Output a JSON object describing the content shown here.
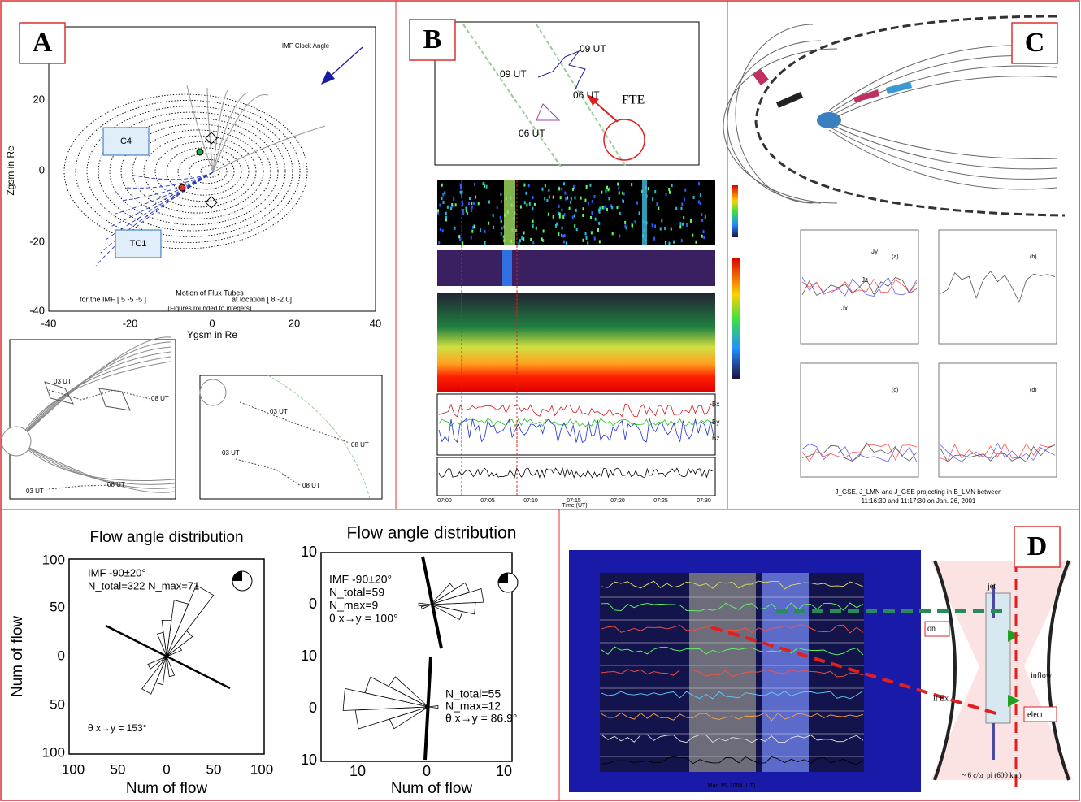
{
  "panel_a": {
    "label": "A",
    "legend": "IMF Clock Angle",
    "y_title": "Zgsm in Re",
    "x_title": "Ygsm in Re",
    "xticks": [
      "-40",
      "-20",
      "0",
      "20",
      "40"
    ],
    "yticks": [
      "20",
      "0",
      "-20",
      "-40"
    ],
    "regions": [
      "C4",
      "TC1"
    ],
    "caption": [
      "Motion of Flux Tubes",
      "for the IMF [   5   -5   -5 ]",
      "at location [   8   -2   0]",
      "(Figures rounded to integers)"
    ],
    "inset_left": [
      "03 UT",
      "08 UT",
      "03 UT",
      "08 UT"
    ],
    "inset_right": [
      "03 UT",
      "08 UT",
      "03 UT",
      "08 UT"
    ]
  },
  "panel_b": {
    "label": "B",
    "times": [
      "09 UT",
      "09 UT",
      "06 UT",
      "06 UT"
    ],
    "event": "FTE",
    "x_title": "Time (UT)",
    "xticks": [
      "07:00",
      "07:05",
      "07:10",
      "07:15",
      "07:20",
      "07:25",
      "07:30"
    ],
    "components": [
      "Bx",
      "By",
      "Bz"
    ]
  },
  "panel_c": {
    "label": "C",
    "subplots": [
      "(a)",
      "(b)",
      "(c)",
      "(d)"
    ],
    "currents": [
      "Jy",
      "Jz",
      "Jx"
    ],
    "caption": [
      "J_GSE, J_LMN and J_GSE projecting in B_LMN between",
      "11:16:30 and 11:17:30 on Jan. 26, 2001"
    ]
  },
  "flow_left": {
    "title": "Flow angle distribution",
    "y_title": "Num of flow",
    "x_title": "Num of flow",
    "yticks": [
      "100",
      "50",
      "0",
      "50",
      "100"
    ],
    "xticks": [
      "100",
      "50",
      "0",
      "50",
      "100"
    ],
    "notes": [
      "IMF -90±20°",
      "N_total=322  N_max=71",
      "θ x→y = 153°"
    ]
  },
  "flow_right": {
    "title": "Flow angle distribution",
    "x_title": "Num of flow",
    "yticks": [
      "10",
      "0",
      "10",
      "0",
      "10"
    ],
    "xticks": [
      "10",
      "0",
      "10"
    ],
    "notes_top": [
      "IMF -90±20°",
      "N_total=59",
      "N_max=9",
      "θ x→y = 100°"
    ],
    "notes_bottom": [
      "N_total=55",
      "N_max=12",
      "θ x→y = 86.9°"
    ]
  },
  "panel_d": {
    "label": "D",
    "date": "Mar. 15, 2004 (UT)",
    "labels": [
      "jet",
      "inflow",
      "elect",
      "on",
      "ll Ex"
    ],
    "scale": "~ 6 c/ω_pi (600 km)"
  }
}
